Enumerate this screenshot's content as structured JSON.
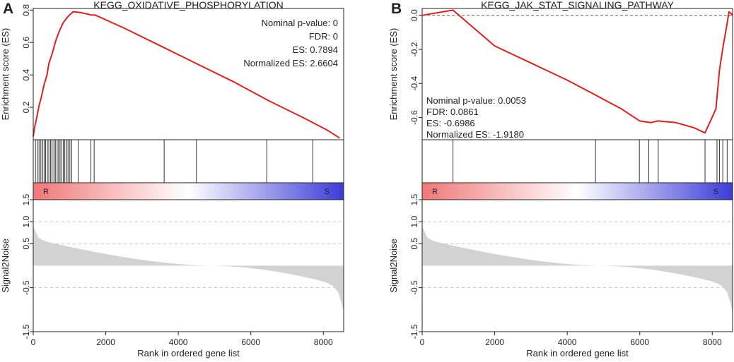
{
  "chart_data": [
    {
      "type": "line",
      "panel": "A",
      "title": "KEGG_OXIDATIVE_PHOSPHORYLATION",
      "ylabel_top": "Enrichment score (ES)",
      "ylabel_bottom": "Signal2Noise",
      "xlabel": "Rank in ordered gene list",
      "xlim": [
        0,
        8560
      ],
      "x_ticks": [
        0,
        2000,
        4000,
        6000,
        8000
      ],
      "es_ylim": [
        0.0,
        0.81
      ],
      "es_ticks": [
        0.2,
        0.4,
        0.6,
        0.8
      ],
      "es_tick_labels": [
        "0.2",
        "0.4",
        "0.6",
        "0.8"
      ],
      "es_curve": {
        "x": [
          0,
          40,
          100,
          160,
          220,
          300,
          380,
          430,
          520,
          620,
          720,
          820,
          920,
          1000,
          1100,
          1300,
          1500,
          1600,
          1700,
          2500,
          3500,
          4500,
          5500,
          6500,
          7500,
          8100,
          8450
        ],
        "y": [
          0.02,
          0.08,
          0.14,
          0.21,
          0.26,
          0.34,
          0.4,
          0.47,
          0.53,
          0.61,
          0.67,
          0.72,
          0.75,
          0.77,
          0.79,
          0.785,
          0.775,
          0.77,
          0.77,
          0.69,
          0.58,
          0.47,
          0.36,
          0.24,
          0.13,
          0.06,
          0.01
        ]
      },
      "hit_ranks": [
        60,
        110,
        160,
        210,
        260,
        300,
        340,
        390,
        430,
        480,
        520,
        570,
        610,
        660,
        700,
        740,
        790,
        830,
        870,
        920,
        960,
        1010,
        1060,
        1240,
        1590,
        1680,
        3610,
        4500,
        6440,
        7710
      ],
      "bar_labels": [
        "R",
        "S"
      ],
      "metric_ylim": [
        -1.5,
        1.5
      ],
      "metric_ticks": [
        -1.5,
        -0.5,
        0.5,
        1.5
      ],
      "metric_tick_labels": [
        "-1.5",
        "-0.5",
        "0.5",
        "1.5"
      ],
      "metric_extra_ticks": [
        1.0
      ],
      "metric_extra_tick_labels": [
        "1.0"
      ],
      "metric_zero_cross": 4870,
      "stats": [
        "Nominal p-value: 0",
        "FDR: 0",
        "ES: 0.7894",
        "Normalized ES: 2.6604"
      ],
      "stats_position": "top-right"
    },
    {
      "type": "line",
      "panel": "B",
      "title": "KEGG_JAK_STAT_SIGNALING_PATHWAY",
      "ylabel_top": "Enrichment score (ES)",
      "ylabel_bottom": "Signal2Noise",
      "xlabel": "Rank in ordered gene list",
      "xlim": [
        0,
        8560
      ],
      "x_ticks": [
        0,
        2000,
        4000,
        6000,
        8000
      ],
      "es_ylim": [
        -0.73,
        0.04
      ],
      "es_ticks": [
        0.0,
        -0.2,
        -0.4,
        -0.6
      ],
      "es_tick_labels": [
        "0.0",
        "-0.2",
        "-0.4",
        "-0.6"
      ],
      "es_curve": {
        "x": [
          0,
          850,
          2000,
          3000,
          4000,
          4800,
          5500,
          6000,
          6300,
          6500,
          7000,
          7500,
          7800,
          8100,
          8200,
          8300,
          8400,
          8460,
          8520,
          8560
        ],
        "y": [
          0.0,
          0.03,
          -0.18,
          -0.28,
          -0.38,
          -0.47,
          -0.55,
          -0.62,
          -0.63,
          -0.62,
          -0.63,
          -0.66,
          -0.69,
          -0.55,
          -0.32,
          -0.18,
          -0.06,
          0.02,
          0.01,
          0.0
        ]
      },
      "zero_line": 0.0,
      "hit_ranks": [
        850,
        4780,
        5990,
        6250,
        6510,
        7800,
        8130,
        8200,
        8290,
        8410
      ],
      "bar_labels": [
        "R",
        "S"
      ],
      "metric_ylim": [
        -1.5,
        1.5
      ],
      "metric_ticks": [
        -1.5,
        -0.5,
        0.5,
        1.5
      ],
      "metric_tick_labels": [
        "-1.5",
        "-0.5",
        "0.5",
        "1.5"
      ],
      "metric_extra_ticks": [
        1.0
      ],
      "metric_extra_tick_labels": [
        "1.0"
      ],
      "metric_zero_cross": 4870,
      "stats": [
        "Nominal p-value: 0.0053",
        "FDR: 0.0861",
        "ES: -0.6986",
        "Normalized ES: -1.9180"
      ],
      "stats_position": "bottom-left"
    }
  ],
  "colors": {
    "es_line": "#e01f1f",
    "hit_line": "#333333",
    "axis": "#222222",
    "gradient_red": "#f07878",
    "gradient_white": "#ffffff",
    "gradient_blue": "#3c3cd8",
    "metric_fill": "#d2d2d2",
    "grid": "#c8c8c8",
    "zero_line": "#666666"
  }
}
